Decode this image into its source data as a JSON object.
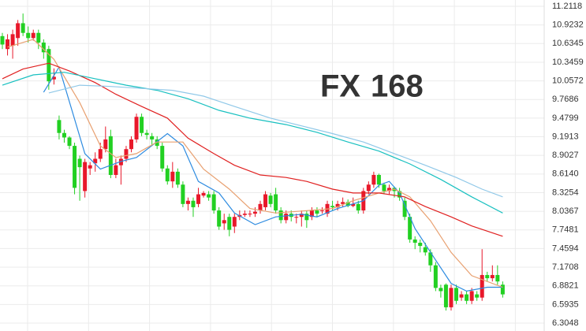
{
  "chart_data": {
    "type": "candlestick",
    "watermark": {
      "fx": "FX",
      "num": "168"
    },
    "open": [
      10.75,
      10.55,
      10.6,
      10.72,
      10.95,
      10.8,
      10.72,
      10.8,
      10.65,
      10.55,
      10.08,
      9.45,
      9.25,
      9.18,
      9.05,
      8.85,
      8.35,
      8.7,
      8.78,
      8.85,
      9.0,
      9.2,
      8.6,
      8.75,
      8.85,
      9.0,
      9.15,
      9.5,
      9.25,
      9.2,
      9.15,
      9.05,
      8.7,
      8.5,
      8.65,
      8.45,
      8.15,
      8.2,
      8.15,
      8.28,
      8.3,
      8.3,
      8.05,
      7.85,
      7.95,
      7.8,
      7.95,
      7.98,
      8.0,
      8.0,
      8.05,
      8.1,
      8.28,
      8.3,
      8.05,
      7.9,
      8.0,
      7.95,
      7.95,
      8.0,
      7.95,
      8.05,
      8.05,
      8.0,
      8.12,
      8.1,
      8.15,
      8.18,
      8.12,
      8.15,
      8.05,
      8.35,
      8.45,
      8.6,
      8.45,
      8.35,
      8.4,
      8.35,
      8.2,
      7.95,
      7.6,
      7.55,
      7.48,
      7.4,
      7.2,
      6.85,
      6.9,
      6.55,
      6.85,
      6.7,
      6.75,
      6.65,
      6.75,
      6.7,
      7.05,
      7.0,
      7.05,
      6.9
    ],
    "high": [
      10.8,
      10.78,
      10.85,
      11.0,
      11.1,
      10.9,
      10.85,
      10.85,
      10.7,
      10.6,
      10.25,
      9.52,
      9.3,
      9.2,
      9.1,
      8.9,
      8.85,
      8.8,
      8.95,
      9.1,
      9.35,
      9.3,
      8.85,
      8.9,
      9.05,
      9.2,
      9.55,
      9.55,
      9.3,
      9.25,
      9.2,
      9.1,
      8.75,
      8.8,
      8.7,
      8.5,
      8.25,
      8.25,
      8.4,
      8.35,
      8.35,
      8.35,
      8.1,
      8.0,
      8.0,
      8.0,
      8.05,
      8.05,
      8.05,
      8.1,
      8.2,
      8.35,
      8.32,
      8.4,
      8.1,
      8.05,
      8.05,
      8.0,
      8.05,
      8.05,
      8.1,
      8.1,
      8.1,
      8.2,
      8.2,
      8.2,
      8.25,
      8.22,
      8.25,
      8.2,
      8.4,
      8.5,
      8.65,
      8.62,
      8.48,
      8.45,
      8.42,
      8.4,
      8.25,
      8.0,
      7.65,
      7.6,
      7.55,
      7.45,
      7.25,
      6.9,
      6.92,
      6.9,
      6.9,
      6.8,
      6.8,
      6.85,
      6.8,
      7.45,
      7.1,
      7.2,
      7.2,
      6.95
    ],
    "low": [
      10.55,
      10.45,
      10.4,
      10.6,
      10.75,
      10.65,
      10.68,
      10.55,
      10.4,
      9.92,
      10.0,
      9.15,
      9.1,
      9.0,
      8.3,
      8.2,
      8.25,
      8.6,
      8.65,
      8.8,
      8.95,
      8.55,
      8.55,
      8.45,
      8.8,
      8.95,
      9.1,
      9.2,
      9.15,
      9.05,
      9.0,
      8.65,
      8.45,
      8.4,
      8.4,
      8.1,
      8.05,
      7.95,
      8.1,
      8.25,
      8.2,
      8.0,
      7.75,
      7.75,
      7.65,
      7.7,
      7.9,
      7.95,
      7.95,
      7.95,
      8.0,
      8.05,
      8.1,
      8.0,
      7.85,
      7.85,
      7.88,
      7.85,
      7.8,
      7.78,
      7.9,
      7.95,
      8.0,
      7.95,
      8.05,
      8.05,
      8.1,
      8.1,
      8.1,
      8.0,
      8.0,
      8.3,
      8.4,
      8.4,
      8.3,
      8.3,
      8.25,
      8.2,
      7.9,
      7.55,
      7.45,
      7.4,
      7.35,
      7.1,
      6.8,
      6.7,
      6.5,
      6.5,
      6.6,
      6.65,
      6.6,
      6.6,
      6.65,
      6.65,
      6.95,
      6.95,
      6.9,
      6.7
    ],
    "close": [
      10.62,
      10.7,
      10.78,
      10.95,
      10.8,
      10.72,
      10.8,
      10.65,
      10.5,
      10.05,
      10.12,
      9.25,
      9.18,
      9.05,
      8.4,
      8.72,
      8.8,
      8.75,
      8.85,
      9.0,
      9.15,
      8.6,
      8.75,
      8.85,
      9.0,
      9.15,
      9.5,
      9.25,
      9.22,
      9.15,
      9.05,
      8.7,
      8.5,
      8.65,
      8.45,
      8.15,
      8.2,
      8.1,
      8.3,
      8.32,
      8.25,
      8.05,
      7.8,
      7.9,
      7.75,
      7.95,
      7.98,
      8.0,
      8.0,
      8.03,
      8.15,
      8.3,
      8.15,
      8.05,
      7.9,
      8.0,
      7.95,
      7.95,
      8.0,
      7.9,
      8.05,
      8.0,
      8.05,
      8.15,
      8.1,
      8.15,
      8.18,
      8.12,
      8.15,
      8.05,
      8.35,
      8.45,
      8.6,
      8.45,
      8.35,
      8.4,
      8.35,
      8.25,
      7.95,
      7.6,
      7.55,
      7.5,
      7.4,
      7.2,
      6.85,
      6.8,
      6.55,
      6.85,
      6.65,
      6.75,
      6.65,
      6.8,
      6.7,
      7.05,
      7.0,
      7.05,
      6.95,
      6.75
    ],
    "up_color": "#e8182a",
    "down_color": "#22d022",
    "series": [
      {
        "color": "#2d8be0",
        "x": [
          8,
          11,
          16,
          19,
          23,
          26,
          32,
          35,
          38,
          42,
          45,
          49,
          53,
          58,
          61,
          65,
          70,
          73,
          75,
          77,
          80,
          84,
          87,
          90,
          94,
          97
        ],
        "values": [
          9.88,
          10.27,
          8.93,
          8.69,
          8.81,
          8.87,
          9.24,
          9.05,
          8.5,
          8.32,
          8.01,
          7.83,
          7.95,
          7.99,
          7.95,
          8.08,
          8.2,
          8.44,
          8.5,
          8.32,
          7.77,
          7.28,
          6.92,
          6.8,
          6.86,
          6.86
        ]
      },
      {
        "color": "#e8a070",
        "x": [
          1,
          6,
          10,
          15,
          19,
          22,
          26,
          30,
          35,
          39,
          44,
          48,
          53,
          58,
          64,
          68,
          73,
          76,
          79,
          83,
          87,
          91,
          97
        ],
        "values": [
          10.58,
          10.7,
          10.39,
          9.72,
          9.05,
          8.87,
          8.93,
          9.11,
          9.11,
          8.69,
          8.38,
          8.08,
          8.01,
          8.04,
          8.08,
          8.2,
          8.32,
          8.38,
          8.26,
          7.89,
          7.4,
          7.04,
          6.86
        ]
      },
      {
        "color": "#e02020",
        "x": [
          0,
          4,
          9,
          13,
          18,
          22,
          27,
          32,
          36,
          41,
          45,
          50,
          55,
          59,
          64,
          68,
          73,
          78,
          82,
          87,
          91,
          97
        ],
        "values": [
          10.09,
          10.24,
          10.33,
          10.21,
          10.03,
          9.85,
          9.66,
          9.48,
          9.17,
          8.93,
          8.75,
          8.6,
          8.56,
          8.5,
          8.38,
          8.32,
          8.32,
          8.26,
          8.11,
          7.95,
          7.81,
          7.65
        ]
      },
      {
        "color": "#18c0c0",
        "x": [
          0,
          6,
          12,
          18,
          24,
          30,
          36,
          42,
          48,
          55,
          61,
          67,
          73,
          79,
          85,
          91,
          97
        ],
        "values": [
          9.99,
          10.15,
          10.19,
          10.09,
          9.99,
          9.91,
          9.78,
          9.6,
          9.48,
          9.38,
          9.26,
          9.11,
          8.97,
          8.77,
          8.53,
          8.26,
          8.01
        ]
      },
      {
        "color": "#90c8e8",
        "x": [
          9,
          15,
          21,
          27,
          33,
          39,
          45,
          52,
          58,
          64,
          70,
          76,
          82,
          88,
          93,
          97
        ],
        "values": [
          9.87,
          9.99,
          9.97,
          9.94,
          9.91,
          9.82,
          9.66,
          9.48,
          9.36,
          9.24,
          9.11,
          8.93,
          8.75,
          8.56,
          8.38,
          8.26
        ]
      }
    ],
    "ylim": [
      6.3048,
      11.2118
    ],
    "yticks": [
      11.2118,
      10.9232,
      10.6345,
      10.3459,
      10.0572,
      9.7686,
      9.4799,
      9.1913,
      8.9027,
      {
        "value": 8.614,
        "label": "8.6140"
      },
      8.3254,
      8.0367,
      7.7481,
      7.4594,
      7.1708,
      6.8821,
      6.5935,
      6.3048
    ],
    "grid": true
  }
}
